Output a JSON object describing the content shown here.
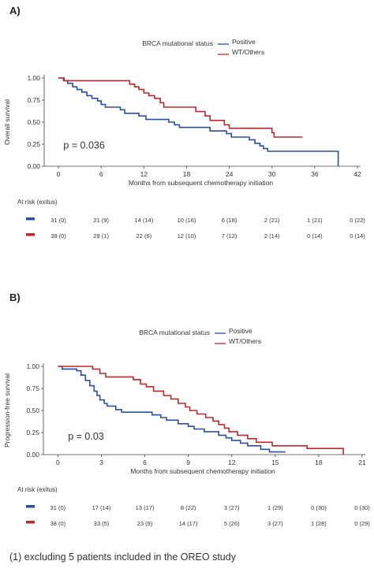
{
  "figure": {
    "footnote": "(1) excluding 5 patients included in the OREO study"
  },
  "chart_data": [
    {
      "panel_label": "A)",
      "type": "line",
      "step": true,
      "ylabel": "Overall survival",
      "xlabel": "Months from subsequent chemotherapy initiation",
      "xlim": [
        -2,
        42
      ],
      "ylim": [
        0,
        1
      ],
      "xticks": [
        "0",
        "6",
        "12",
        "18",
        "24",
        "30",
        "36",
        "42"
      ],
      "yticks": [
        "0.00",
        "0.25",
        "0.50",
        "0.75",
        "1.00"
      ],
      "legend_title": "BRCA mutational status",
      "legend_position": "top-center",
      "pvalue": "p = 0.036",
      "series": [
        {
          "name": "Positive",
          "color": "#2a4ea6",
          "points": [
            [
              0,
              1.0
            ],
            [
              0.7,
              0.97
            ],
            [
              1.3,
              0.94
            ],
            [
              2,
              0.9
            ],
            [
              2.6,
              0.87
            ],
            [
              3.3,
              0.84
            ],
            [
              4,
              0.8
            ],
            [
              4.7,
              0.77
            ],
            [
              5.5,
              0.74
            ],
            [
              6,
              0.7
            ],
            [
              6.6,
              0.67
            ],
            [
              8.7,
              0.64
            ],
            [
              9.3,
              0.6
            ],
            [
              11.3,
              0.57
            ],
            [
              12.3,
              0.53
            ],
            [
              15.5,
              0.5
            ],
            [
              16.3,
              0.47
            ],
            [
              17,
              0.44
            ],
            [
              21.3,
              0.4
            ],
            [
              23.6,
              0.37
            ],
            [
              24.3,
              0.33
            ],
            [
              26.8,
              0.3
            ],
            [
              27.6,
              0.26
            ],
            [
              28.3,
              0.23
            ],
            [
              28.8,
              0.2
            ],
            [
              29.4,
              0.17
            ],
            [
              39.3,
              0.17
            ],
            [
              39.3,
              0.0
            ]
          ]
        },
        {
          "name": "WT/Others",
          "color": "#c0282d",
          "points": [
            [
              0,
              1.0
            ],
            [
              0.8,
              0.97
            ],
            [
              9.3,
              0.97
            ],
            [
              10,
              0.93
            ],
            [
              10.7,
              0.9
            ],
            [
              11.3,
              0.87
            ],
            [
              12,
              0.83
            ],
            [
              12.7,
              0.8
            ],
            [
              13.5,
              0.77
            ],
            [
              14.3,
              0.72
            ],
            [
              14.8,
              0.67
            ],
            [
              18.6,
              0.67
            ],
            [
              19.3,
              0.62
            ],
            [
              20.6,
              0.57
            ],
            [
              21.3,
              0.52
            ],
            [
              23.3,
              0.47
            ],
            [
              24,
              0.43
            ],
            [
              29.6,
              0.43
            ],
            [
              30,
              0.38
            ],
            [
              30.3,
              0.33
            ],
            [
              34.3,
              0.33
            ]
          ]
        }
      ],
      "risk_table": {
        "title": "At risk (exitus)",
        "times": [
          0,
          6,
          12,
          18,
          24,
          30,
          36,
          42
        ],
        "rows": [
          {
            "series": "Positive",
            "color": "#2a4ea6",
            "cells": [
              "31 (0)",
              "21 (9)",
              "14 (14)",
              "10 (16)",
              "6 (18)",
              "2 (21)",
              "1 (21)",
              "0 (22)"
            ]
          },
          {
            "series": "WT/Others",
            "color": "#c0282d",
            "cells": [
              "38 (0)",
              "29 (1)",
              "22 (6)",
              "12 (10)",
              "7 (12)",
              "2 (14)",
              "0 (14)",
              "0 (14)"
            ]
          }
        ]
      }
    },
    {
      "panel_label": "B)",
      "type": "line",
      "step": true,
      "ylabel": "Progression-free survival",
      "xlabel": "Months from subsequent chemotherapy initiation",
      "xlim": [
        -1,
        21
      ],
      "ylim": [
        0,
        1
      ],
      "xticks": [
        "0",
        "3",
        "6",
        "9",
        "12",
        "15",
        "18",
        "21"
      ],
      "yticks": [
        "0.00",
        "0.25",
        "0.50",
        "0.75",
        "1.00"
      ],
      "legend_title": "BRCA mutational status",
      "legend_position": "top-center",
      "pvalue": "p = 0.03",
      "series": [
        {
          "name": "Positive",
          "color": "#2a4ea6",
          "points": [
            [
              0,
              1.0
            ],
            [
              0.3,
              0.97
            ],
            [
              1.3,
              0.95
            ],
            [
              1.6,
              0.9
            ],
            [
              1.9,
              0.84
            ],
            [
              2.2,
              0.78
            ],
            [
              2.5,
              0.72
            ],
            [
              2.7,
              0.67
            ],
            [
              2.9,
              0.62
            ],
            [
              3.2,
              0.58
            ],
            [
              3.4,
              0.55
            ],
            [
              4.0,
              0.51
            ],
            [
              4.4,
              0.48
            ],
            [
              6.1,
              0.48
            ],
            [
              6.5,
              0.45
            ],
            [
              7.1,
              0.42
            ],
            [
              7.5,
              0.39
            ],
            [
              8.3,
              0.35
            ],
            [
              9.0,
              0.32
            ],
            [
              9.4,
              0.29
            ],
            [
              10.1,
              0.26
            ],
            [
              11.1,
              0.22
            ],
            [
              11.6,
              0.19
            ],
            [
              12.0,
              0.16
            ],
            [
              12.6,
              0.13
            ],
            [
              13.1,
              0.1
            ],
            [
              14.0,
              0.06
            ],
            [
              14.6,
              0.03
            ],
            [
              15.7,
              0.03
            ]
          ]
        },
        {
          "name": "WT/Others",
          "color": "#c0282d",
          "points": [
            [
              0,
              1.0
            ],
            [
              2.4,
              0.97
            ],
            [
              2.9,
              0.92
            ],
            [
              3.3,
              0.88
            ],
            [
              5.2,
              0.85
            ],
            [
              5.7,
              0.8
            ],
            [
              6.1,
              0.77
            ],
            [
              6.6,
              0.72
            ],
            [
              7.3,
              0.67
            ],
            [
              7.8,
              0.63
            ],
            [
              8.3,
              0.58
            ],
            [
              8.8,
              0.54
            ],
            [
              9.1,
              0.5
            ],
            [
              9.6,
              0.46
            ],
            [
              10.2,
              0.42
            ],
            [
              10.7,
              0.38
            ],
            [
              11.1,
              0.34
            ],
            [
              11.5,
              0.3
            ],
            [
              11.8,
              0.26
            ],
            [
              12.4,
              0.22
            ],
            [
              13.1,
              0.18
            ],
            [
              13.7,
              0.14
            ],
            [
              14.8,
              0.1
            ],
            [
              17.2,
              0.07
            ],
            [
              19.7,
              0.07
            ],
            [
              19.7,
              0.0
            ]
          ]
        }
      ],
      "risk_table": {
        "title": "At risk (exitus)",
        "times": [
          0,
          3,
          6,
          9,
          12,
          15,
          18,
          21
        ],
        "rows": [
          {
            "series": "Positive",
            "color": "#2a4ea6",
            "cells": [
              "31 (0)",
              "17 (14)",
              "13 (17)",
              "8 (22)",
              "3 (27)",
              "1 (29)",
              "0 (30)",
              "0 (30)"
            ]
          },
          {
            "series": "WT/Others",
            "color": "#c0282d",
            "cells": [
              "38 (0)",
              "33 (5)",
              "23 (9)",
              "14 (17)",
              "5 (26)",
              "3 (27)",
              "1 (28)",
              "0 (29)"
            ]
          }
        ]
      }
    }
  ]
}
